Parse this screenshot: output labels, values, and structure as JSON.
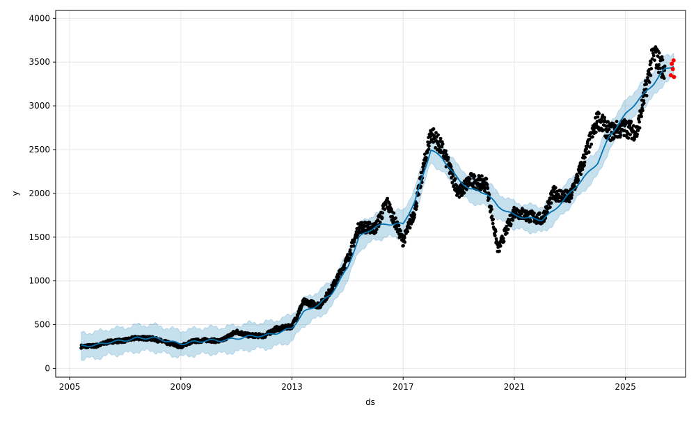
{
  "chart_data": {
    "type": "line",
    "xlabel": "ds",
    "ylabel": "y",
    "x_ticks": [
      "2005",
      "2009",
      "2013",
      "2017",
      "2021",
      "2025"
    ],
    "y_ticks": [
      0,
      500,
      1000,
      1500,
      2000,
      2500,
      3000,
      3500,
      4000
    ],
    "xlim": [
      "2004-07-01",
      "2027-03-01"
    ],
    "ylim": [
      -100,
      4090
    ],
    "grid": true,
    "colors": {
      "observed": "#000000",
      "forecast_line": "#0072B2",
      "uncertainty_band": "#0072B2",
      "recent_points": "#ff0000"
    },
    "series": [
      {
        "kind": "forecast",
        "points": [
          [
            "2005-06-01",
            255
          ],
          [
            "2006-01-01",
            268
          ],
          [
            "2006-06-01",
            300
          ],
          [
            "2007-01-01",
            320
          ],
          [
            "2007-06-01",
            345
          ],
          [
            "2008-01-01",
            350
          ],
          [
            "2008-06-01",
            320
          ],
          [
            "2009-01-01",
            280
          ],
          [
            "2009-06-01",
            300
          ],
          [
            "2010-01-01",
            320
          ],
          [
            "2010-06-01",
            318
          ],
          [
            "2011-01-01",
            340
          ],
          [
            "2011-06-01",
            365
          ],
          [
            "2012-01-01",
            375
          ],
          [
            "2012-06-01",
            400
          ],
          [
            "2013-01-01",
            460
          ],
          [
            "2013-06-01",
            640
          ],
          [
            "2014-01-01",
            740
          ],
          [
            "2014-06-01",
            850
          ],
          [
            "2015-01-01",
            1150
          ],
          [
            "2015-06-01",
            1500
          ],
          [
            "2016-01-01",
            1620
          ],
          [
            "2016-06-01",
            1650
          ],
          [
            "2017-01-01",
            1650
          ],
          [
            "2017-06-01",
            1900
          ],
          [
            "2018-01-01",
            2500
          ],
          [
            "2018-06-01",
            2400
          ],
          [
            "2019-01-01",
            2150
          ],
          [
            "2019-06-01",
            2050
          ],
          [
            "2020-01-01",
            2000
          ],
          [
            "2020-06-01",
            1850
          ],
          [
            "2021-01-01",
            1750
          ],
          [
            "2021-06-01",
            1720
          ],
          [
            "2022-01-01",
            1700
          ],
          [
            "2022-06-01",
            1800
          ],
          [
            "2023-01-01",
            2000
          ],
          [
            "2023-06-01",
            2150
          ],
          [
            "2024-01-01",
            2350
          ],
          [
            "2024-06-01",
            2650
          ],
          [
            "2025-01-01",
            2900
          ],
          [
            "2025-06-01",
            3050
          ],
          [
            "2026-01-01",
            3250
          ],
          [
            "2026-06-01",
            3420
          ],
          [
            "2026-10-01",
            3460
          ]
        ]
      },
      {
        "kind": "observed",
        "points": [
          [
            "2005-06-01",
            250
          ],
          [
            "2006-01-01",
            260
          ],
          [
            "2006-06-01",
            305
          ],
          [
            "2007-01-01",
            320
          ],
          [
            "2007-06-01",
            350
          ],
          [
            "2008-01-01",
            340
          ],
          [
            "2008-06-01",
            300
          ],
          [
            "2009-01-01",
            250
          ],
          [
            "2009-06-01",
            310
          ],
          [
            "2010-01-01",
            325
          ],
          [
            "2010-06-01",
            310
          ],
          [
            "2011-01-01",
            420
          ],
          [
            "2011-06-01",
            380
          ],
          [
            "2012-01-01",
            370
          ],
          [
            "2012-06-01",
            450
          ],
          [
            "2013-01-01",
            480
          ],
          [
            "2013-06-01",
            760
          ],
          [
            "2014-01-01",
            720
          ],
          [
            "2014-06-01",
            900
          ],
          [
            "2015-01-01",
            1250
          ],
          [
            "2015-06-01",
            1620
          ],
          [
            "2016-01-01",
            1600
          ],
          [
            "2016-06-01",
            1900
          ],
          [
            "2017-01-01",
            1450
          ],
          [
            "2017-06-01",
            1800
          ],
          [
            "2018-01-01",
            2700
          ],
          [
            "2018-06-01",
            2500
          ],
          [
            "2019-01-01",
            2000
          ],
          [
            "2019-06-01",
            2150
          ],
          [
            "2020-01-01",
            2100
          ],
          [
            "2020-06-01",
            1350
          ],
          [
            "2021-01-01",
            1800
          ],
          [
            "2021-06-01",
            1750
          ],
          [
            "2022-01-01",
            1700
          ],
          [
            "2022-06-01",
            2000
          ],
          [
            "2023-01-01",
            1950
          ],
          [
            "2023-06-01",
            2300
          ],
          [
            "2024-01-01",
            2850
          ],
          [
            "2024-06-01",
            2700
          ],
          [
            "2025-01-01",
            2750
          ],
          [
            "2025-06-01",
            2700
          ],
          [
            "2026-01-01",
            3600
          ],
          [
            "2026-06-01",
            3400
          ]
        ]
      },
      {
        "kind": "recent",
        "points": [
          [
            "2026-08-20",
            3350
          ],
          [
            "2026-09-01",
            3480
          ],
          [
            "2026-09-15",
            3420
          ],
          [
            "2026-09-25",
            3520
          ],
          [
            "2026-10-01",
            3330
          ]
        ]
      }
    ]
  }
}
